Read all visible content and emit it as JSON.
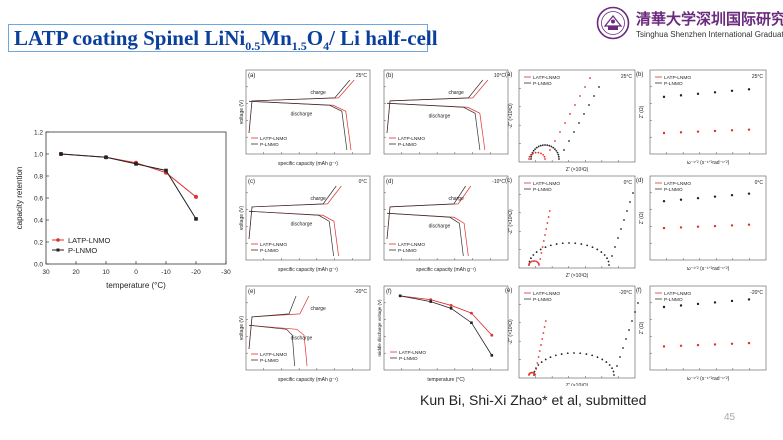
{
  "slide": {
    "title_main": "LATP coating Spinel LiNi",
    "title_sub1": "0.5",
    "title_mid": "Mn",
    "title_sub2": "1.5",
    "title_tail": "O",
    "title_sub3": "4",
    "title_end": "/ Li half-cell",
    "caption": "Kun Bi, Shi-Xi Zhao* et al,  submitted",
    "page_number": "45"
  },
  "logo": {
    "cn": "清華大学深圳国际研究生院",
    "en": "Tsinghua Shenzhen International Graduate School"
  },
  "chart_data": [
    {
      "type": "line",
      "id": "retention",
      "xlabel": "temperature (°C)",
      "ylabel": "capacity retention",
      "xticks": [
        "30",
        "20",
        "10",
        "0",
        "-10",
        "-20",
        "-30"
      ],
      "yticks": [
        "0.0",
        "0.2",
        "0.4",
        "0.6",
        "0.8",
        "1.0",
        "1.2"
      ],
      "x": [
        25,
        10,
        0,
        -10,
        -20
      ],
      "series": [
        {
          "name": "LATP-LNMO",
          "color": "#e03030",
          "values": [
            1.0,
            0.97,
            0.92,
            0.83,
            0.61
          ]
        },
        {
          "name": "P-LNMO",
          "color": "#222222",
          "values": [
            1.0,
            0.97,
            0.91,
            0.85,
            0.41
          ]
        }
      ]
    },
    {
      "type": "line",
      "id": "cv-a",
      "panel": "(a)",
      "temp": "25°C",
      "xlabel": "specific capacity (mAh g⁻¹)",
      "ylabel": "voltage (V)",
      "annotations": [
        "charge",
        "discharge"
      ],
      "legend": [
        "LATP-LNMO",
        "P-LNMO"
      ]
    },
    {
      "type": "line",
      "id": "cv-b",
      "panel": "(b)",
      "temp": "10°C",
      "annotations": [
        "charge",
        "discharge"
      ],
      "legend": [
        "LATP-LNMO",
        "P-LNMO"
      ]
    },
    {
      "type": "line",
      "id": "cv-c",
      "panel": "(c)",
      "temp": "0°C",
      "xlabel": "specific capacity (mAh g⁻¹)",
      "ylabel": "voltage (V)",
      "annotations": [
        "charge",
        "discharge"
      ],
      "legend": [
        "LATP-LNMO",
        "P-LNMO"
      ]
    },
    {
      "type": "line",
      "id": "cv-d",
      "panel": "(d)",
      "temp": "-10°C",
      "xlabel": "specific capacity (mAh g⁻¹)",
      "annotations": [
        "charge",
        "discharge"
      ],
      "legend": [
        "LATP-LNMO",
        "P-LNMO"
      ]
    },
    {
      "type": "line",
      "id": "cv-e",
      "panel": "(e)",
      "temp": "-20°C",
      "xlabel": "specific capacity (mAh g⁻¹)",
      "ylabel": "voltage (V)",
      "annotations": [
        "charge",
        "discharge"
      ],
      "legend": [
        "LATP-LNMO",
        "P-LNMO"
      ]
    },
    {
      "type": "line",
      "id": "mdv",
      "panel": "(f)",
      "xlabel": "temperature (°C)",
      "ylabel": "middle discharge voltage (V)",
      "x": [
        25,
        10,
        0,
        -10,
        -20
      ],
      "series": [
        {
          "name": "LATP-LNMO",
          "color": "#e03030",
          "values": [
            4.66,
            4.62,
            4.56,
            4.48,
            4.25
          ]
        },
        {
          "name": "P-LNMO",
          "color": "#222222",
          "values": [
            4.66,
            4.6,
            4.53,
            4.38,
            4.04
          ]
        }
      ]
    },
    {
      "type": "scatter",
      "id": "nyq-a",
      "panel": "(a)",
      "temp": "25°C",
      "xlabel": "Z' (×10³Ω)",
      "ylabel": "-Z'' (×10³Ω)",
      "legend": [
        "LATP-LNMO",
        "P-LNMO"
      ]
    },
    {
      "type": "scatter",
      "id": "nyq-c",
      "panel": "(c)",
      "temp": "0°C",
      "xlabel": "Z' (×10³Ω)",
      "ylabel": "-Z'' (×10³Ω)",
      "legend": [
        "LATP-LNMO",
        "P-LNMO"
      ]
    },
    {
      "type": "scatter",
      "id": "nyq-e",
      "panel": "(e)",
      "temp": "-20°C",
      "xlabel": "Z' (×10³Ω)",
      "ylabel": "-Z'' (×10³Ω)",
      "legend": [
        "LATP-LNMO",
        "P-LNMO"
      ]
    },
    {
      "type": "scatter",
      "id": "war-b",
      "panel": "(b)",
      "temp": "25°C",
      "xlabel": "ω⁻¹ᐟ² (s⁻¹ᐟ²rad⁻¹ᐟ²)",
      "ylabel": "Z' (Ω)",
      "legend": [
        "LATP-LNMO",
        "P-LNMO"
      ]
    },
    {
      "type": "scatter",
      "id": "war-d",
      "panel": "(d)",
      "temp": "0°C",
      "xlabel": "ω⁻¹ᐟ² (s⁻¹ᐟ²rad⁻¹ᐟ²)",
      "ylabel": "Z' (Ω)",
      "legend": [
        "LATP-LNMO",
        "P-LNMO"
      ]
    },
    {
      "type": "scatter",
      "id": "war-f",
      "panel": "(f)",
      "temp": "-20°C",
      "xlabel": "ω⁻¹ᐟ² (s⁻¹ᐟ²rad⁻¹ᐟ²)",
      "ylabel": "Z' (Ω)",
      "legend": [
        "LATP-LNMO",
        "P-LNMO"
      ]
    }
  ],
  "colors": {
    "title": "#0b3f9c",
    "title_border": "#6fa8dc",
    "latp": "#e03030",
    "plnmo": "#222222",
    "logo": "#6a2a7d"
  }
}
